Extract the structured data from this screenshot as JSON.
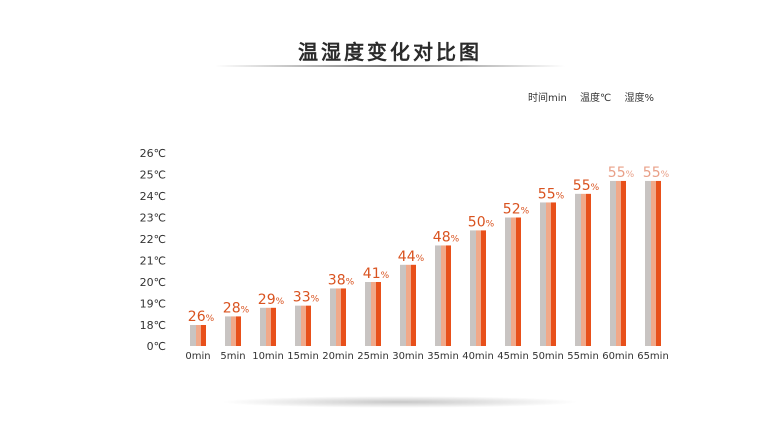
{
  "chart_data": {
    "type": "bar",
    "title": "温湿度变化对比图",
    "legend": [
      "时间min",
      "温度℃",
      "湿度%"
    ],
    "legend_placement": "top-right",
    "categories": [
      "0min",
      "5min",
      "10min",
      "15min",
      "20min",
      "25min",
      "30min",
      "35min",
      "40min",
      "45min",
      "50min",
      "55min",
      "60min",
      "65min"
    ],
    "series": [
      {
        "name": "温度℃",
        "values": [
          18.0,
          18.4,
          18.8,
          18.9,
          19.7,
          20.0,
          20.8,
          21.7,
          22.4,
          23.0,
          23.7,
          24.1,
          24.7,
          24.7
        ]
      },
      {
        "name": "湿度%",
        "values": [
          26,
          28,
          29,
          33,
          38,
          41,
          44,
          48,
          50,
          52,
          55,
          55,
          55,
          55
        ]
      }
    ],
    "data_label_suffix": "%",
    "y_ticks": [
      "0℃",
      "18℃",
      "19℃",
      "20℃",
      "21℃",
      "22℃",
      "23℃",
      "24℃",
      "25℃",
      "26℃"
    ],
    "ylim": [
      18,
      26
    ],
    "y_axis_break": "0℃ to 18℃",
    "grid": false,
    "colors": {
      "bar_gray": "#c8c4c2",
      "bar_light": "#f0a98a",
      "bar_orange": "#e8501a",
      "label": "#d95320",
      "label_light": "#e9a088",
      "text": "#2b2b2b"
    }
  }
}
